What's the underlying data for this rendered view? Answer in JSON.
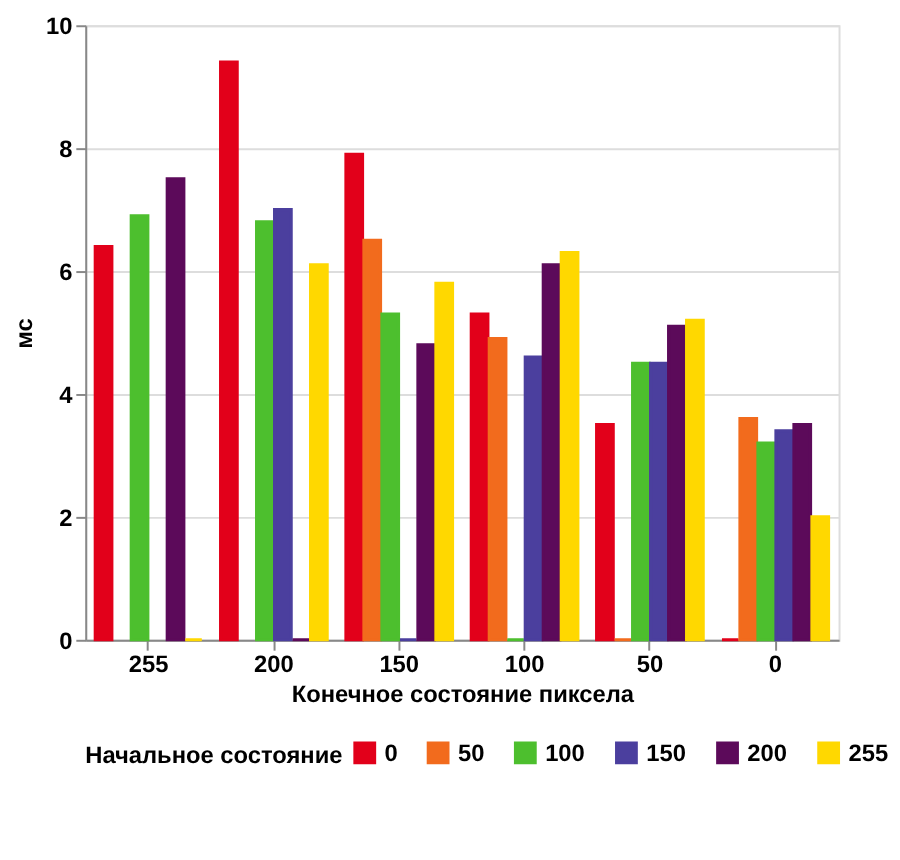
{
  "chart_data": {
    "type": "bar",
    "xlabel": "Конечное состояние пиксела",
    "ylabel": "мс",
    "legend_title": "Начальное состояние",
    "categories": [
      "255",
      "200",
      "150",
      "100",
      "50",
      "0"
    ],
    "series": [
      {
        "name": "0",
        "color": "#e2001a",
        "values": [
          6.4,
          9.4,
          7.9,
          5.3,
          3.5,
          0
        ]
      },
      {
        "name": "50",
        "color": "#f26b1d",
        "values": [
          null,
          null,
          6.5,
          4.9,
          0,
          3.6
        ]
      },
      {
        "name": "100",
        "color": "#4dbf2e",
        "values": [
          6.9,
          6.8,
          5.3,
          0,
          4.5,
          3.2
        ]
      },
      {
        "name": "150",
        "color": "#4b3f9e",
        "values": [
          null,
          7.0,
          0,
          4.6,
          4.5,
          3.4
        ]
      },
      {
        "name": "200",
        "color": "#5c0a5a",
        "values": [
          7.5,
          0,
          4.8,
          6.1,
          5.1,
          3.5
        ]
      },
      {
        "name": "255",
        "color": "#ffd800",
        "values": [
          0,
          6.1,
          5.8,
          6.3,
          5.2,
          2.0
        ]
      }
    ],
    "ylim": [
      0,
      10
    ],
    "yticks": [
      0,
      2,
      4,
      6,
      8,
      10
    ],
    "grid": "y",
    "legend": "bottom"
  }
}
